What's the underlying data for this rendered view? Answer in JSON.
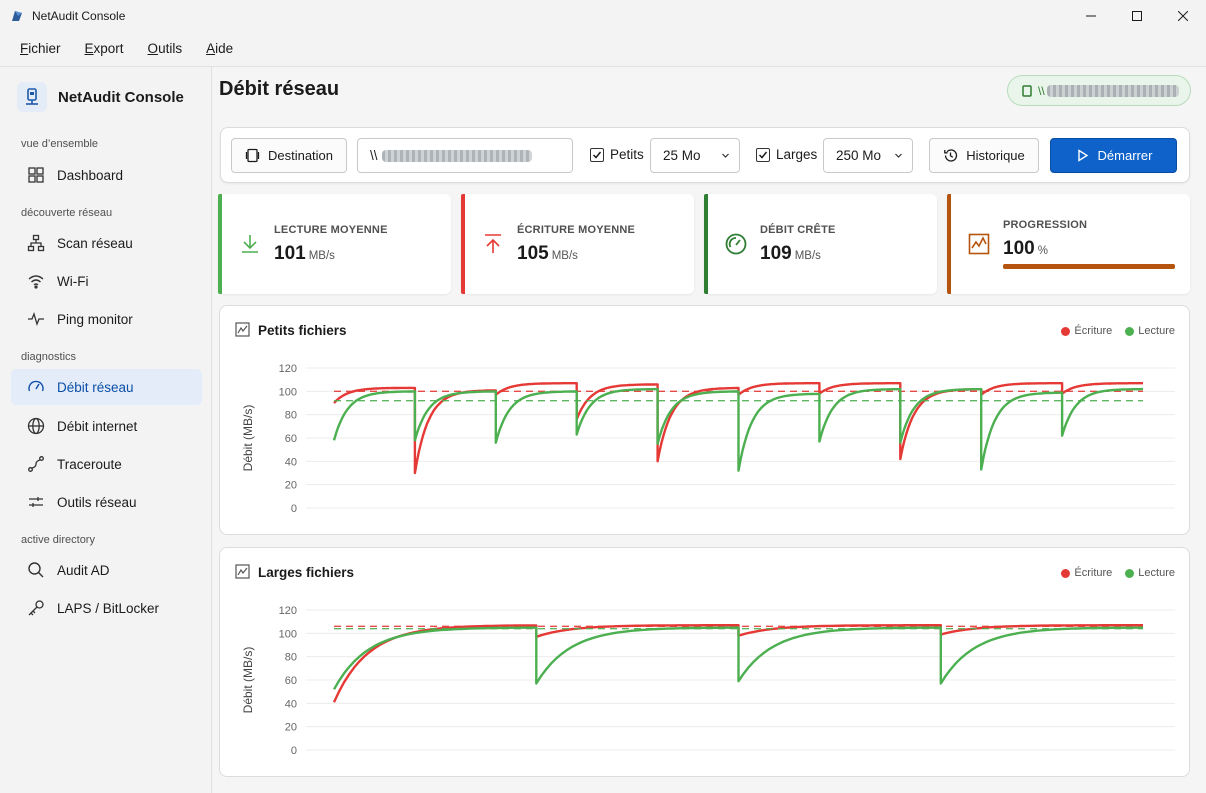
{
  "window": {
    "title": "NetAudit Console"
  },
  "menu": [
    {
      "mnemonic": "F",
      "rest": "ichier"
    },
    {
      "mnemonic": "E",
      "rest": "xport"
    },
    {
      "mnemonic": "O",
      "rest": "utils"
    },
    {
      "mnemonic": "A",
      "rest": "ide"
    }
  ],
  "sidebar": {
    "brand": "NetAudit Console",
    "sections": {
      "overview": "vue d’ensemble",
      "discovery": "découverte réseau",
      "diagnostics": "diagnostics",
      "ad": "active directory"
    },
    "items": {
      "dashboard": "Dashboard",
      "scan": "Scan réseau",
      "wifi": "Wi-Fi",
      "ping": "Ping monitor",
      "debit_reseau": "Débit réseau",
      "debit_internet": "Débit internet",
      "traceroute": "Traceroute",
      "outils": "Outils réseau",
      "audit_ad": "Audit AD",
      "laps": "LAPS / BitLocker"
    }
  },
  "page": {
    "title": "Débit réseau",
    "path_prefix": "\\\\"
  },
  "toolbar": {
    "destination_label": "Destination",
    "path_prefix": "\\\\",
    "petits_label": "Petits",
    "petits_checked": true,
    "petits_size": "25 Mo",
    "larges_label": "Larges",
    "larges_checked": true,
    "larges_size": "250 Mo",
    "historique_label": "Historique",
    "start_label": "Démarrer"
  },
  "stats": {
    "read": {
      "label": "LECTURE MOYENNE",
      "value": "101",
      "unit": "MB/s",
      "color": "#4caf50"
    },
    "write": {
      "label": "ÉCRITURE MOYENNE",
      "value": "105",
      "unit": "MB/s",
      "color": "#e53935"
    },
    "peak": {
      "label": "DÉBIT CRÊTE",
      "value": "109",
      "unit": "MB/s",
      "color": "#2e7d32"
    },
    "progress": {
      "label": "PROGRESSION",
      "value": "100",
      "unit": "%",
      "fraction": 1.0,
      "color": "#b5540e"
    }
  },
  "chart_data": [
    {
      "type": "line",
      "title": "Petits fichiers",
      "ylabel": "Débit (MB/s)",
      "ylim": [
        0,
        120
      ],
      "yticks": [
        0,
        20,
        40,
        60,
        80,
        100,
        120
      ],
      "grid": true,
      "legend": "top-right",
      "series": [
        {
          "name": "Écriture",
          "color": "#e53935",
          "average": 100,
          "runs": [
            {
              "start": 90,
              "end": 103
            },
            {
              "start": 30,
              "end": 101
            },
            {
              "start": 97,
              "end": 107
            },
            {
              "start": 76,
              "end": 106
            },
            {
              "start": 40,
              "end": 103
            },
            {
              "start": 97,
              "end": 107
            },
            {
              "start": 98,
              "end": 107
            },
            {
              "start": 42,
              "end": 102
            },
            {
              "start": 97,
              "end": 107
            },
            {
              "start": 98,
              "end": 107
            }
          ]
        },
        {
          "name": "Lecture",
          "color": "#4caf50",
          "average": 92,
          "runs": [
            {
              "start": 58,
              "end": 100
            },
            {
              "start": 58,
              "end": 100
            },
            {
              "start": 56,
              "end": 100
            },
            {
              "start": 63,
              "end": 102
            },
            {
              "start": 55,
              "end": 100
            },
            {
              "start": 32,
              "end": 98
            },
            {
              "start": 57,
              "end": 102
            },
            {
              "start": 56,
              "end": 102
            },
            {
              "start": 33,
              "end": 99
            },
            {
              "start": 62,
              "end": 102
            }
          ]
        }
      ]
    },
    {
      "type": "line",
      "title": "Larges fichiers",
      "ylabel": "Débit (MB/s)",
      "ylim": [
        0,
        120
      ],
      "yticks": [
        0,
        20,
        40,
        60,
        80,
        100,
        120
      ],
      "grid": true,
      "legend": "top-right",
      "series": [
        {
          "name": "Écriture",
          "color": "#e53935",
          "average": 106,
          "runs": [
            {
              "start": 41,
              "end": 107
            },
            {
              "start": 97,
              "end": 107
            },
            {
              "start": 98,
              "end": 107
            },
            {
              "start": 99,
              "end": 107
            }
          ]
        },
        {
          "name": "Lecture",
          "color": "#4caf50",
          "average": 104,
          "runs": [
            {
              "start": 52,
              "end": 105
            },
            {
              "start": 57,
              "end": 105
            },
            {
              "start": 59,
              "end": 105
            },
            {
              "start": 57,
              "end": 105
            }
          ]
        }
      ]
    }
  ]
}
